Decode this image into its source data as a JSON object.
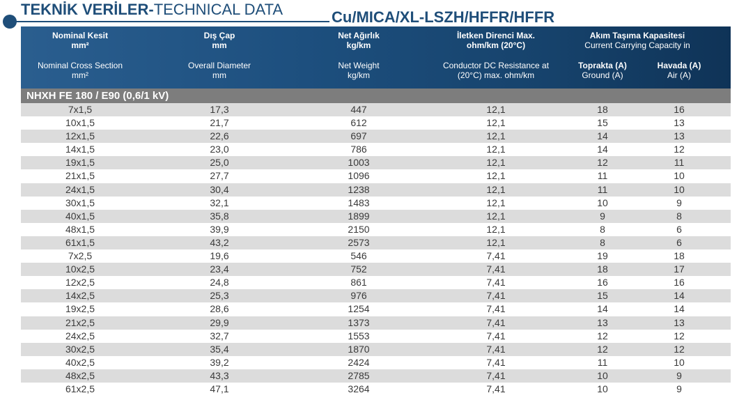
{
  "title": {
    "bold": "TEKNİK VERİLER-",
    "normal": "TECHNICAL DATA"
  },
  "subtitle": "Cu/MICA/XL-LSZH/HFFR/HFFR",
  "headers": [
    {
      "tr1": "Nominal Kesit",
      "tr2": "mm²",
      "en1": "Nominal Cross Section",
      "en2": "mm²"
    },
    {
      "tr1": "Dış Çap",
      "tr2": "mm",
      "en1": "Overall Diameter",
      "en2": "mm"
    },
    {
      "tr1": "Net Ağırlık",
      "tr2": "kg/km",
      "en1": "Net Weight",
      "en2": "kg/km"
    },
    {
      "tr1": "İletken Direnci Max.",
      "tr2": "ohm/km (20°C)",
      "en1": "Conductor DC Resistance at",
      "en2": "(20°C) max. ohm/km"
    }
  ],
  "capacity_header": {
    "tr": "Akım Taşıma Kapasitesi",
    "en": "Current Carrying Capacity in",
    "ground_tr": "Toprakta (A)",
    "ground_en": "Ground (A)",
    "air_tr": "Havada (A)",
    "air_en": "Air (A)"
  },
  "section_label": "NHXH FE 180 / E90 (0,6/1 kV)",
  "rows": [
    [
      "7x1,5",
      "17,3",
      "447",
      "12,1",
      "18",
      "16"
    ],
    [
      "10x1,5",
      "21,7",
      "612",
      "12,1",
      "15",
      "13"
    ],
    [
      "12x1,5",
      "22,6",
      "697",
      "12,1",
      "14",
      "13"
    ],
    [
      "14x1,5",
      "23,0",
      "786",
      "12,1",
      "14",
      "12"
    ],
    [
      "19x1,5",
      "25,0",
      "1003",
      "12,1",
      "12",
      "11"
    ],
    [
      "21x1,5",
      "27,7",
      "1096",
      "12,1",
      "11",
      "10"
    ],
    [
      "24x1,5",
      "30,4",
      "1238",
      "12,1",
      "11",
      "10"
    ],
    [
      "30x1,5",
      "32,1",
      "1483",
      "12,1",
      "10",
      "9"
    ],
    [
      "40x1,5",
      "35,8",
      "1899",
      "12,1",
      "9",
      "8"
    ],
    [
      "48x1,5",
      "39,9",
      "2150",
      "12,1",
      "8",
      "6"
    ],
    [
      "61x1,5",
      "43,2",
      "2573",
      "12,1",
      "8",
      "6"
    ],
    [
      "7x2,5",
      "19,6",
      "546",
      "7,41",
      "19",
      "18"
    ],
    [
      "10x2,5",
      "23,4",
      "752",
      "7,41",
      "18",
      "17"
    ],
    [
      "12x2,5",
      "24,8",
      "861",
      "7,41",
      "16",
      "16"
    ],
    [
      "14x2,5",
      "25,3",
      "976",
      "7,41",
      "15",
      "14"
    ],
    [
      "19x2,5",
      "28,6",
      "1254",
      "7,41",
      "14",
      "14"
    ],
    [
      "21x2,5",
      "29,9",
      "1373",
      "7,41",
      "13",
      "13"
    ],
    [
      "24x2,5",
      "32,7",
      "1553",
      "7,41",
      "12",
      "12"
    ],
    [
      "30x2,5",
      "35,4",
      "1870",
      "7,41",
      "12",
      "12"
    ],
    [
      "40x2,5",
      "39,2",
      "2424",
      "7,41",
      "11",
      "10"
    ],
    [
      "48x2,5",
      "43,3",
      "2785",
      "7,41",
      "10",
      "9"
    ],
    [
      "61x2,5",
      "47,1",
      "3264",
      "7,41",
      "10",
      "9"
    ]
  ],
  "colors": {
    "header_blue": "#1d4f7e",
    "section_gray": "#7d7d7d",
    "stripe_gray": "#dcdcdc",
    "title_blue": "#1f4e79"
  }
}
